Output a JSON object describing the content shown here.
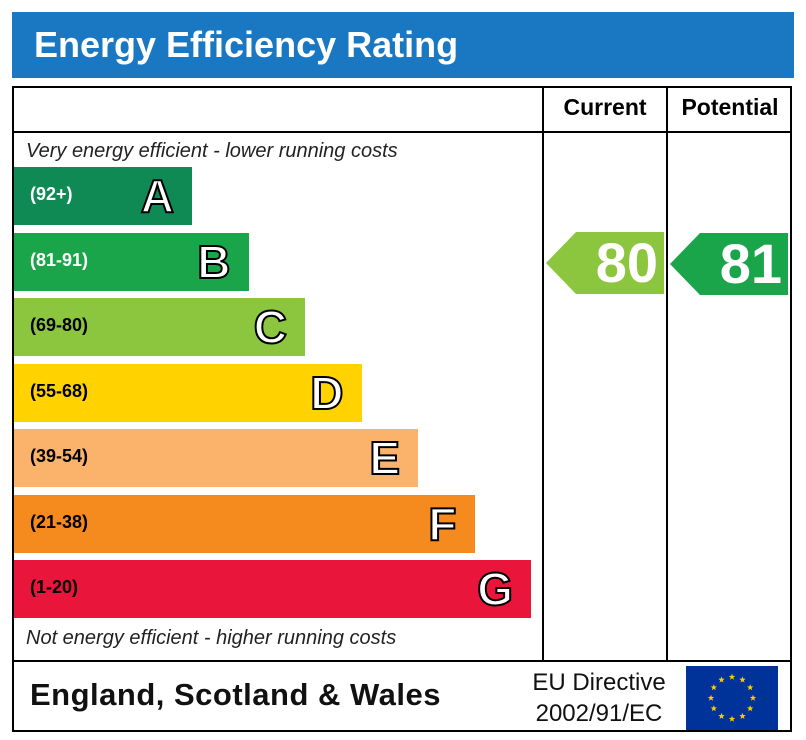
{
  "title": "Energy Efficiency Rating",
  "columns": {
    "current": "Current",
    "potential": "Potential"
  },
  "notes": {
    "top": "Very energy efficient - lower running costs",
    "bottom": "Not energy efficient - higher running costs"
  },
  "footer": {
    "region": "England, Scotland & Wales",
    "directive_line1": "EU Directive",
    "directive_line2": "2002/91/EC"
  },
  "chart_data": {
    "type": "bar",
    "title": "Energy Efficiency Rating",
    "categories": [
      "A",
      "B",
      "C",
      "D",
      "E",
      "F",
      "G"
    ],
    "bands": [
      {
        "letter": "A",
        "range": "(92+)",
        "color": "#0f8a55",
        "range_color": "#ffffff"
      },
      {
        "letter": "B",
        "range": "(81-91)",
        "color": "#1ba54b",
        "range_color": "#ffffff"
      },
      {
        "letter": "C",
        "range": "(69-80)",
        "color": "#8cc63f",
        "range_color": "#000000"
      },
      {
        "letter": "D",
        "range": "(55-68)",
        "color": "#ffd200",
        "range_color": "#000000"
      },
      {
        "letter": "E",
        "range": "(39-54)",
        "color": "#fbb36b",
        "range_color": "#000000"
      },
      {
        "letter": "F",
        "range": "(21-38)",
        "color": "#f58b1f",
        "range_color": "#000000"
      },
      {
        "letter": "G",
        "range": "(1-20)",
        "color": "#e9153b",
        "range_color": "#000000"
      }
    ],
    "current": {
      "value": 80,
      "label": "80",
      "band": "C",
      "color": "#8cc63f"
    },
    "potential": {
      "value": 81,
      "label": "81",
      "band": "B",
      "color": "#1ba54b"
    }
  }
}
